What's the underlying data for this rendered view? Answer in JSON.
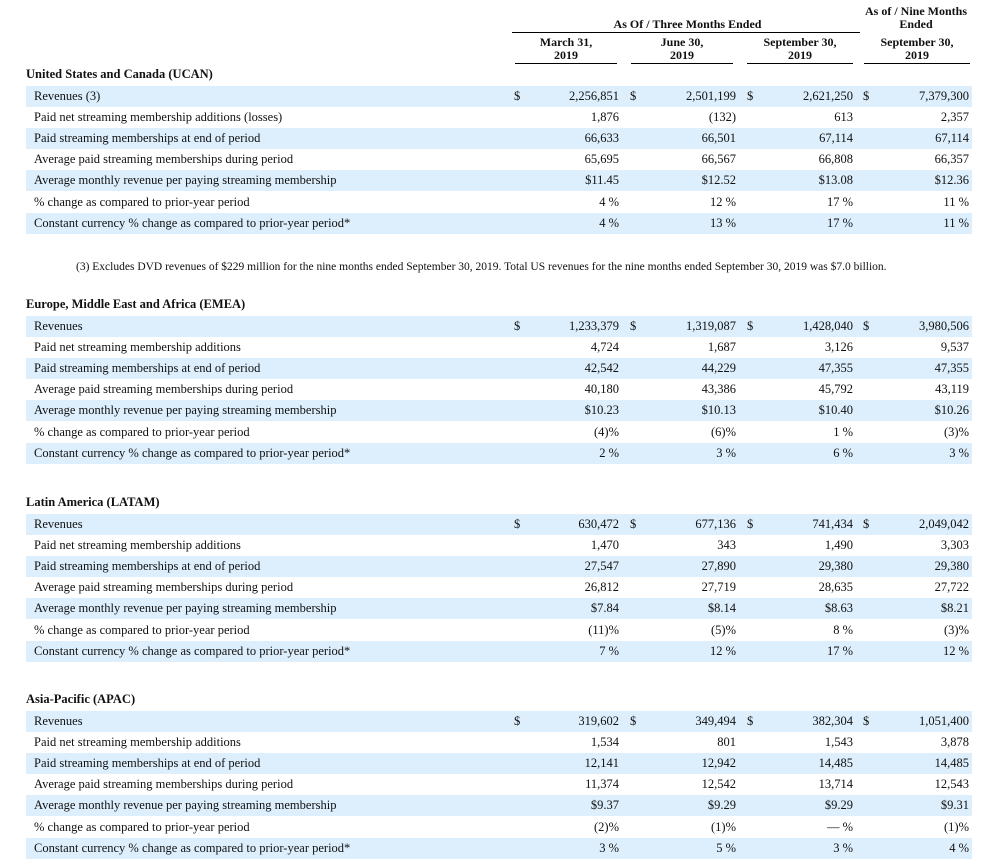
{
  "header": {
    "group_label": "As Of / Three Months Ended",
    "nine_label_1": "As of / Nine Months",
    "nine_label_2": "Ended",
    "columns": [
      {
        "line1": "March 31,",
        "line2": "2019"
      },
      {
        "line1": "June 30,",
        "line2": "2019"
      },
      {
        "line1": "September 30,",
        "line2": "2019"
      },
      {
        "line1": "September 30,",
        "line2": "2019"
      }
    ]
  },
  "currency_symbol": "$",
  "footnote": "(3) Excludes DVD revenues of $229 million for the nine months ended September 30, 2019. Total US revenues for the nine months ended September 30, 2019 was $7.0 billion.",
  "regions": [
    {
      "title": "United States and Canada (UCAN)",
      "rows": [
        {
          "label": "Revenues (3)",
          "values": [
            "2,256,851",
            "2,501,199",
            "2,621,250",
            "7,379,300"
          ]
        },
        {
          "label": "Paid net streaming membership additions (losses)",
          "values": [
            "1,876",
            "(132)",
            "613",
            "2,357"
          ]
        },
        {
          "label": "Paid streaming memberships at end of period",
          "values": [
            "66,633",
            "66,501",
            "67,114",
            "67,114"
          ]
        },
        {
          "label": "Average paid streaming memberships during period",
          "values": [
            "65,695",
            "66,567",
            "66,808",
            "66,357"
          ]
        },
        {
          "label": "Average monthly revenue per paying streaming membership",
          "values": [
            "$11.45",
            "$12.52",
            "$13.08",
            "$12.36"
          ]
        },
        {
          "label": "% change as compared to prior-year period",
          "values": [
            "4 %",
            "12 %",
            "17 %",
            "11 %"
          ]
        },
        {
          "label": "Constant currency % change as compared to prior-year period*",
          "values": [
            "4 %",
            "13 %",
            "17 %",
            "11 %"
          ]
        }
      ]
    },
    {
      "title": "Europe, Middle East and Africa (EMEA)",
      "rows": [
        {
          "label": "Revenues",
          "values": [
            "1,233,379",
            "1,319,087",
            "1,428,040",
            "3,980,506"
          ]
        },
        {
          "label": "Paid net streaming membership additions",
          "values": [
            "4,724",
            "1,687",
            "3,126",
            "9,537"
          ]
        },
        {
          "label": "Paid streaming memberships at end of period",
          "values": [
            "42,542",
            "44,229",
            "47,355",
            "47,355"
          ]
        },
        {
          "label": "Average paid streaming memberships during period",
          "values": [
            "40,180",
            "43,386",
            "45,792",
            "43,119"
          ]
        },
        {
          "label": "Average monthly revenue per paying streaming membership",
          "values": [
            "$10.23",
            "$10.13",
            "$10.40",
            "$10.26"
          ]
        },
        {
          "label": "% change as compared to prior-year period",
          "values": [
            "(4)%",
            "(6)%",
            "1 %",
            "(3)%"
          ]
        },
        {
          "label": "Constant currency % change as compared to prior-year period*",
          "values": [
            "2 %",
            "3 %",
            "6 %",
            "3 %"
          ]
        }
      ]
    },
    {
      "title": "Latin America (LATAM)",
      "rows": [
        {
          "label": "Revenues",
          "values": [
            "630,472",
            "677,136",
            "741,434",
            "2,049,042"
          ]
        },
        {
          "label": "Paid net streaming membership additions",
          "values": [
            "1,470",
            "343",
            "1,490",
            "3,303"
          ]
        },
        {
          "label": "Paid streaming memberships at end of period",
          "values": [
            "27,547",
            "27,890",
            "29,380",
            "29,380"
          ]
        },
        {
          "label": "Average paid streaming memberships during period",
          "values": [
            "26,812",
            "27,719",
            "28,635",
            "27,722"
          ]
        },
        {
          "label": "Average monthly revenue per paying streaming membership",
          "values": [
            "$7.84",
            "$8.14",
            "$8.63",
            "$8.21"
          ]
        },
        {
          "label": "% change as compared to prior-year period",
          "values": [
            "(11)%",
            "(5)%",
            "8 %",
            "(3)%"
          ]
        },
        {
          "label": "Constant currency % change as compared to prior-year period*",
          "values": [
            "7 %",
            "12 %",
            "17 %",
            "12 %"
          ]
        }
      ]
    },
    {
      "title": "Asia-Pacific (APAC)",
      "rows": [
        {
          "label": "Revenues",
          "values": [
            "319,602",
            "349,494",
            "382,304",
            "1,051,400"
          ]
        },
        {
          "label": "Paid net streaming membership additions",
          "values": [
            "1,534",
            "801",
            "1,543",
            "3,878"
          ]
        },
        {
          "label": "Paid streaming memberships at end of period",
          "values": [
            "12,141",
            "12,942",
            "14,485",
            "14,485"
          ]
        },
        {
          "label": "Average paid streaming memberships during period",
          "values": [
            "11,374",
            "12,542",
            "13,714",
            "12,543"
          ]
        },
        {
          "label": "Average monthly revenue per paying streaming membership",
          "values": [
            "$9.37",
            "$9.29",
            "$9.29",
            "$9.31"
          ]
        },
        {
          "label": "% change as compared to prior-year period",
          "values": [
            "(2)%",
            "(1)%",
            "— %",
            "(1)%"
          ]
        },
        {
          "label": "Constant currency % change as compared to prior-year period*",
          "values": [
            "3 %",
            "5 %",
            "3 %",
            "4 %"
          ]
        }
      ]
    }
  ]
}
